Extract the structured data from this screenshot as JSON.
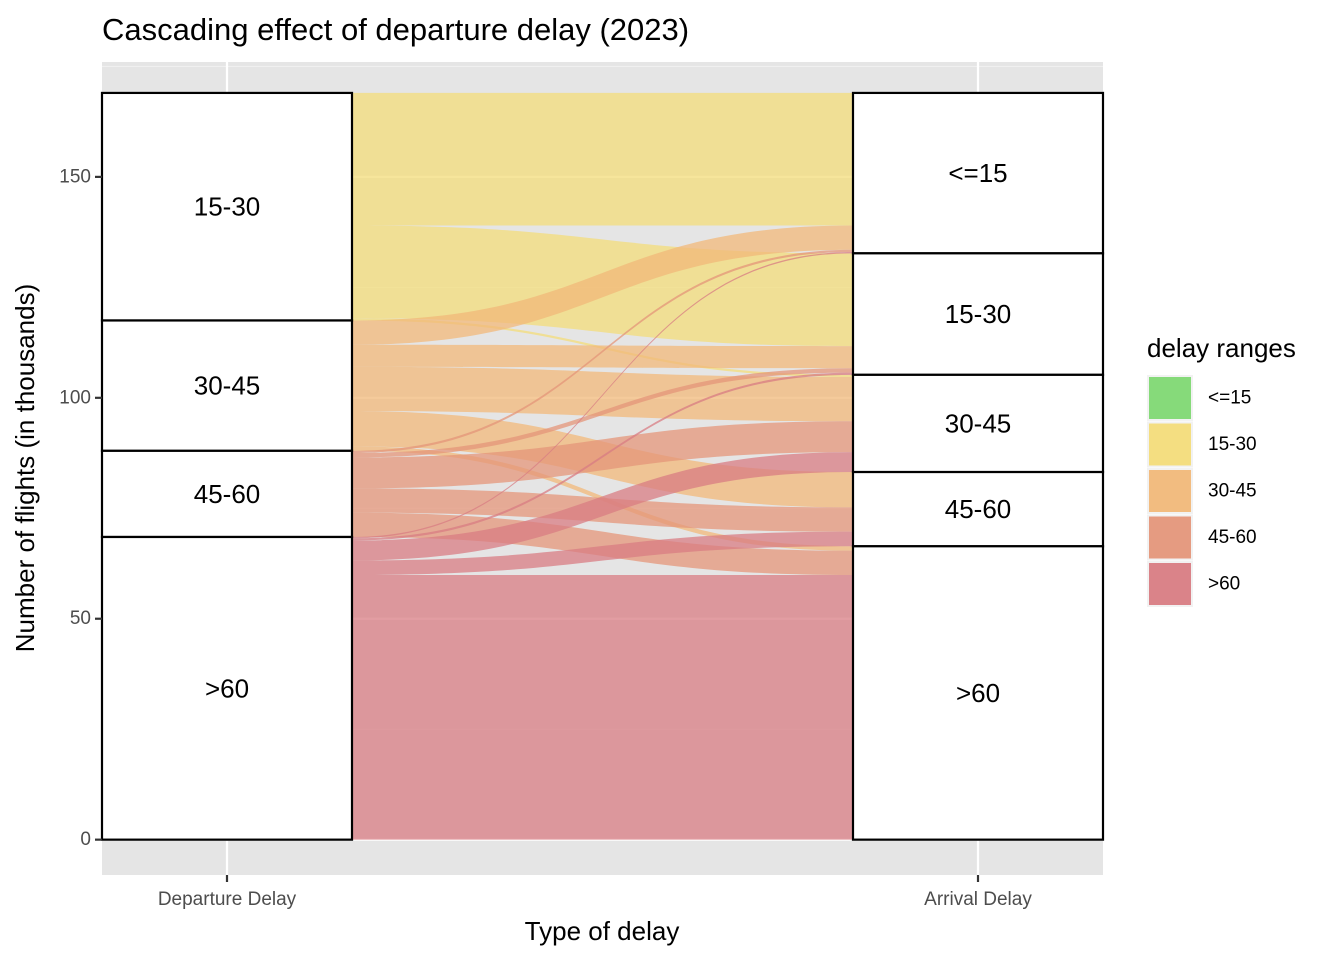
{
  "chart_data": {
    "type": "alluvial",
    "title": "Cascading effect of departure delay (2023)",
    "xlabel": "Type of delay",
    "ylabel": "Number of flights (in thousands)",
    "axes": [
      "Departure Delay",
      "Arrival Delay"
    ],
    "ylim": [
      -8,
      176
    ],
    "yticks": [
      0,
      50,
      100,
      150
    ],
    "grid": true,
    "legend": {
      "title": "delay ranges",
      "position": "right",
      "items": [
        {
          "label": "<=15",
          "color": "#7fd873"
        },
        {
          "label": "15-30",
          "color": "#f3dc7a"
        },
        {
          "label": "30-45",
          "color": "#f1b879"
        },
        {
          "label": "45-60",
          "color": "#e4967a"
        },
        {
          "label": ">60",
          "color": "#d87c83"
        }
      ]
    },
    "strata_order": [
      "<=15",
      "15-30",
      "30-45",
      "45-60",
      ">60"
    ],
    "departure_strata": [
      {
        "label": "15-30",
        "value": 51.5
      },
      {
        "label": "30-45",
        "value": 29.5
      },
      {
        "label": "45-60",
        "value": 19.5
      },
      {
        "label": ">60",
        "value": 68.5
      }
    ],
    "arrival_strata": [
      {
        "label": "<=15",
        "value": 36.3
      },
      {
        "label": "15-30",
        "value": 27.5
      },
      {
        "label": "30-45",
        "value": 22.0
      },
      {
        "label": "45-60",
        "value": 16.8
      },
      {
        "label": ">60",
        "value": 66.4
      }
    ],
    "flows": [
      {
        "from": "15-30",
        "to": "<=15",
        "value": 30.0
      },
      {
        "from": "15-30",
        "to": "15-30",
        "value": 21.0
      },
      {
        "from": "15-30",
        "to": "30-45",
        "value": 0.5
      },
      {
        "from": "30-45",
        "to": "<=15",
        "value": 5.5
      },
      {
        "from": "30-45",
        "to": "15-30",
        "value": 5.0
      },
      {
        "from": "30-45",
        "to": "30-45",
        "value": 10.0
      },
      {
        "from": "30-45",
        "to": "45-60",
        "value": 8.0
      },
      {
        "from": "30-45",
        "to": ">60",
        "value": 1.0
      },
      {
        "from": "45-60",
        "to": "<=15",
        "value": 0.5
      },
      {
        "from": "45-60",
        "to": "15-30",
        "value": 1.0
      },
      {
        "from": "45-60",
        "to": "30-45",
        "value": 7.0
      },
      {
        "from": "45-60",
        "to": "45-60",
        "value": 5.5
      },
      {
        "from": "45-60",
        "to": ">60",
        "value": 5.5
      },
      {
        "from": ">60",
        "to": "<=15",
        "value": 0.3
      },
      {
        "from": ">60",
        "to": "15-30",
        "value": 0.5
      },
      {
        "from": ">60",
        "to": "30-45",
        "value": 4.5
      },
      {
        "from": ">60",
        "to": "45-60",
        "value": 3.3
      },
      {
        "from": ">60",
        "to": ">60",
        "value": 59.9
      }
    ]
  }
}
